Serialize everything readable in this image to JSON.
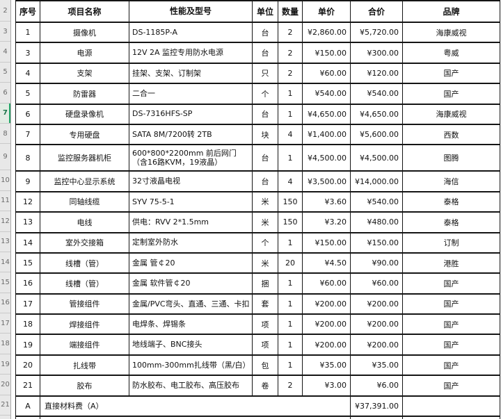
{
  "sheet": {
    "row_headers": [
      "2",
      "3",
      "4",
      "5",
      "6",
      "7",
      "8",
      "9",
      "10",
      "11",
      "12",
      "13",
      "14",
      "15",
      "16",
      "17",
      "18",
      "19",
      "20",
      "21",
      ""
    ],
    "selected_row_header": "7",
    "colors": {
      "selection_green": "#21a366",
      "grid_border": "#141414",
      "strip_background": "#e8e8e8"
    }
  },
  "table": {
    "columns": [
      {
        "key": "no",
        "label": "序号"
      },
      {
        "key": "name",
        "label": "项目名称"
      },
      {
        "key": "spec",
        "label": "性能及型号"
      },
      {
        "key": "unit",
        "label": "单位"
      },
      {
        "key": "qty",
        "label": "数量"
      },
      {
        "key": "price",
        "label": "单价"
      },
      {
        "key": "total",
        "label": "合价"
      },
      {
        "key": "brand",
        "label": "品牌"
      }
    ],
    "rows": [
      {
        "no": "1",
        "name": "摄像机",
        "spec": "DS-1185P-A",
        "unit": "台",
        "qty": "2",
        "price": "¥2,860.00",
        "total": "¥5,720.00",
        "brand": "海康威视"
      },
      {
        "no": "3",
        "name": "电源",
        "spec": "12V 2A 监控专用防水电源",
        "unit": "台",
        "qty": "2",
        "price": "¥150.00",
        "total": "¥300.00",
        "brand": "粤威"
      },
      {
        "no": "4",
        "name": "支架",
        "spec": "挂架、支架、订制架",
        "unit": "只",
        "qty": "2",
        "price": "¥60.00",
        "total": "¥120.00",
        "brand": "国产"
      },
      {
        "no": "5",
        "name": "防雷器",
        "spec": "二合一",
        "unit": "个",
        "qty": "1",
        "price": "¥540.00",
        "total": "¥540.00",
        "brand": "国产"
      },
      {
        "no": "6",
        "name": "硬盘录像机",
        "spec": "DS-7316HFS-SP",
        "unit": "台",
        "qty": "1",
        "price": "¥4,650.00",
        "total": "¥4,650.00",
        "brand": "海康威视"
      },
      {
        "no": "7",
        "name": "专用硬盘",
        "spec": "SATA 8M/7200转 2TB",
        "unit": "块",
        "qty": "4",
        "price": "¥1,400.00",
        "total": "¥5,600.00",
        "brand": "西数"
      },
      {
        "no": "8",
        "name": "监控服务器机柜",
        "spec": "600*800*2200mm 前后网门（含16路KVM，19液晶）",
        "unit": "台",
        "qty": "1",
        "price": "¥4,500.00",
        "total": "¥4,500.00",
        "brand": "图腾"
      },
      {
        "no": "9",
        "name": "监控中心显示系统",
        "spec": "32寸液晶电视",
        "unit": "台",
        "qty": "4",
        "price": "¥3,500.00",
        "total": "¥14,000.00",
        "brand": "海信"
      },
      {
        "no": "12",
        "name": "同轴线缆",
        "spec": "SYV 75-5-1",
        "unit": "米",
        "qty": "150",
        "price": "¥3.60",
        "total": "¥540.00",
        "brand": "泰格"
      },
      {
        "no": "13",
        "name": "电线",
        "spec": "供电：RVV 2*1.5mm",
        "unit": "米",
        "qty": "150",
        "price": "¥3.20",
        "total": "¥480.00",
        "brand": "泰格"
      },
      {
        "no": "14",
        "name": "室外交接箱",
        "spec": "定制室外防水",
        "unit": "个",
        "qty": "1",
        "price": "¥150.00",
        "total": "¥150.00",
        "brand": "订制"
      },
      {
        "no": "15",
        "name": "线槽（管）",
        "spec": "金属 管￠20",
        "unit": "米",
        "qty": "20",
        "price": "¥4.50",
        "total": "¥90.00",
        "brand": "港胜"
      },
      {
        "no": "16",
        "name": "线槽（管）",
        "spec": "金属 软件管￠20",
        "unit": "捆",
        "qty": "1",
        "price": "¥60.00",
        "total": "¥60.00",
        "brand": "国产"
      },
      {
        "no": "17",
        "name": "管接组件",
        "spec": "金属/PVC弯头、直通、三通、卡扣",
        "unit": "套",
        "qty": "1",
        "price": "¥200.00",
        "total": "¥200.00",
        "brand": "国产"
      },
      {
        "no": "18",
        "name": "焊接组件",
        "spec": "电焊条、焊锡条",
        "unit": "项",
        "qty": "1",
        "price": "¥200.00",
        "total": "¥200.00",
        "brand": "国产"
      },
      {
        "no": "19",
        "name": "端接组件",
        "spec": "地线端子、BNC接头",
        "unit": "项",
        "qty": "1",
        "price": "¥200.00",
        "total": "¥200.00",
        "brand": "国产"
      },
      {
        "no": "20",
        "name": "扎线带",
        "spec": "100mm-300mm扎线带（黑/白）",
        "unit": "包",
        "qty": "1",
        "price": "¥35.00",
        "total": "¥35.00",
        "brand": "国产"
      },
      {
        "no": "21",
        "name": "胶布",
        "spec": "防水胶布、电工胶布、高压胶布",
        "unit": "卷",
        "qty": "2",
        "price": "¥3.00",
        "total": "¥6.00",
        "brand": "国产"
      }
    ],
    "summary": {
      "no": "A",
      "label": "直接材料费（A）",
      "total": "¥37,391.00",
      "brand": ""
    }
  }
}
